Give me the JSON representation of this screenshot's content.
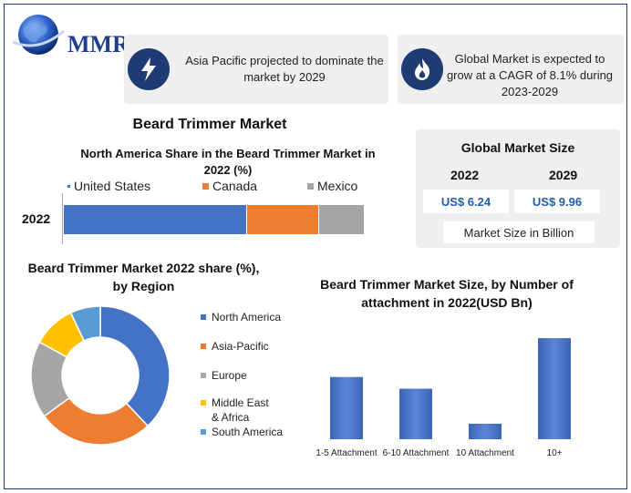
{
  "logo": {
    "text": "MMR"
  },
  "callouts": [
    {
      "icon": "lightning-icon",
      "text": "Asia Pacific projected to dominate the market by 2029"
    },
    {
      "icon": "flame-icon",
      "text": "Global Market is expected to grow at a CAGR of 8.1% during 2023-2029"
    }
  ],
  "main_title": "Beard Trimmer Market",
  "global_market": {
    "title": "Global Market Size",
    "years": [
      "2022",
      "2029"
    ],
    "values": [
      "US$ 6.24",
      "US$ 9.96"
    ],
    "note": "Market Size in Billion"
  },
  "colors": {
    "blue": "#4472c4",
    "orange": "#ed7d31",
    "gray": "#a5a5a5",
    "yellow": "#ffc000",
    "light_blue": "#5b9bd5",
    "navy": "#1f3b73",
    "value_text": "#1f5fa8"
  },
  "chart_data": [
    {
      "type": "bar",
      "orientation": "horizontal-stacked",
      "title": "North America Share in the Beard Trimmer Market in 2022 (%)",
      "categories": [
        "2022"
      ],
      "series": [
        {
          "name": "United States",
          "values": [
            61
          ],
          "color": "#4472c4"
        },
        {
          "name": "Canada",
          "values": [
            24
          ],
          "color": "#ed7d31"
        },
        {
          "name": "Mexico",
          "values": [
            15
          ],
          "color": "#a5a5a5"
        }
      ]
    },
    {
      "type": "pie",
      "style": "donut",
      "title": "Beard Trimmer Market 2022 share (%), by Region",
      "labels": [
        "North America",
        "Asia-Pacific",
        "Europe",
        "Middle East & Africa",
        "South America"
      ],
      "values": [
        38,
        27,
        18,
        10,
        7
      ],
      "colors": [
        "#4472c4",
        "#ed7d31",
        "#a5a5a5",
        "#ffc000",
        "#5b9bd5"
      ],
      "legend": "right"
    },
    {
      "type": "bar",
      "title": "Beard Trimmer Market Size, by Number of attachment in 2022(USD Bn)",
      "categories": [
        "1-5 Attachment",
        "6-10 Attachment",
        "10 Attachment",
        "10+"
      ],
      "values": [
        1.6,
        1.3,
        0.4,
        2.6
      ],
      "ylim": [
        0,
        3
      ],
      "color": "#4472c4"
    }
  ]
}
